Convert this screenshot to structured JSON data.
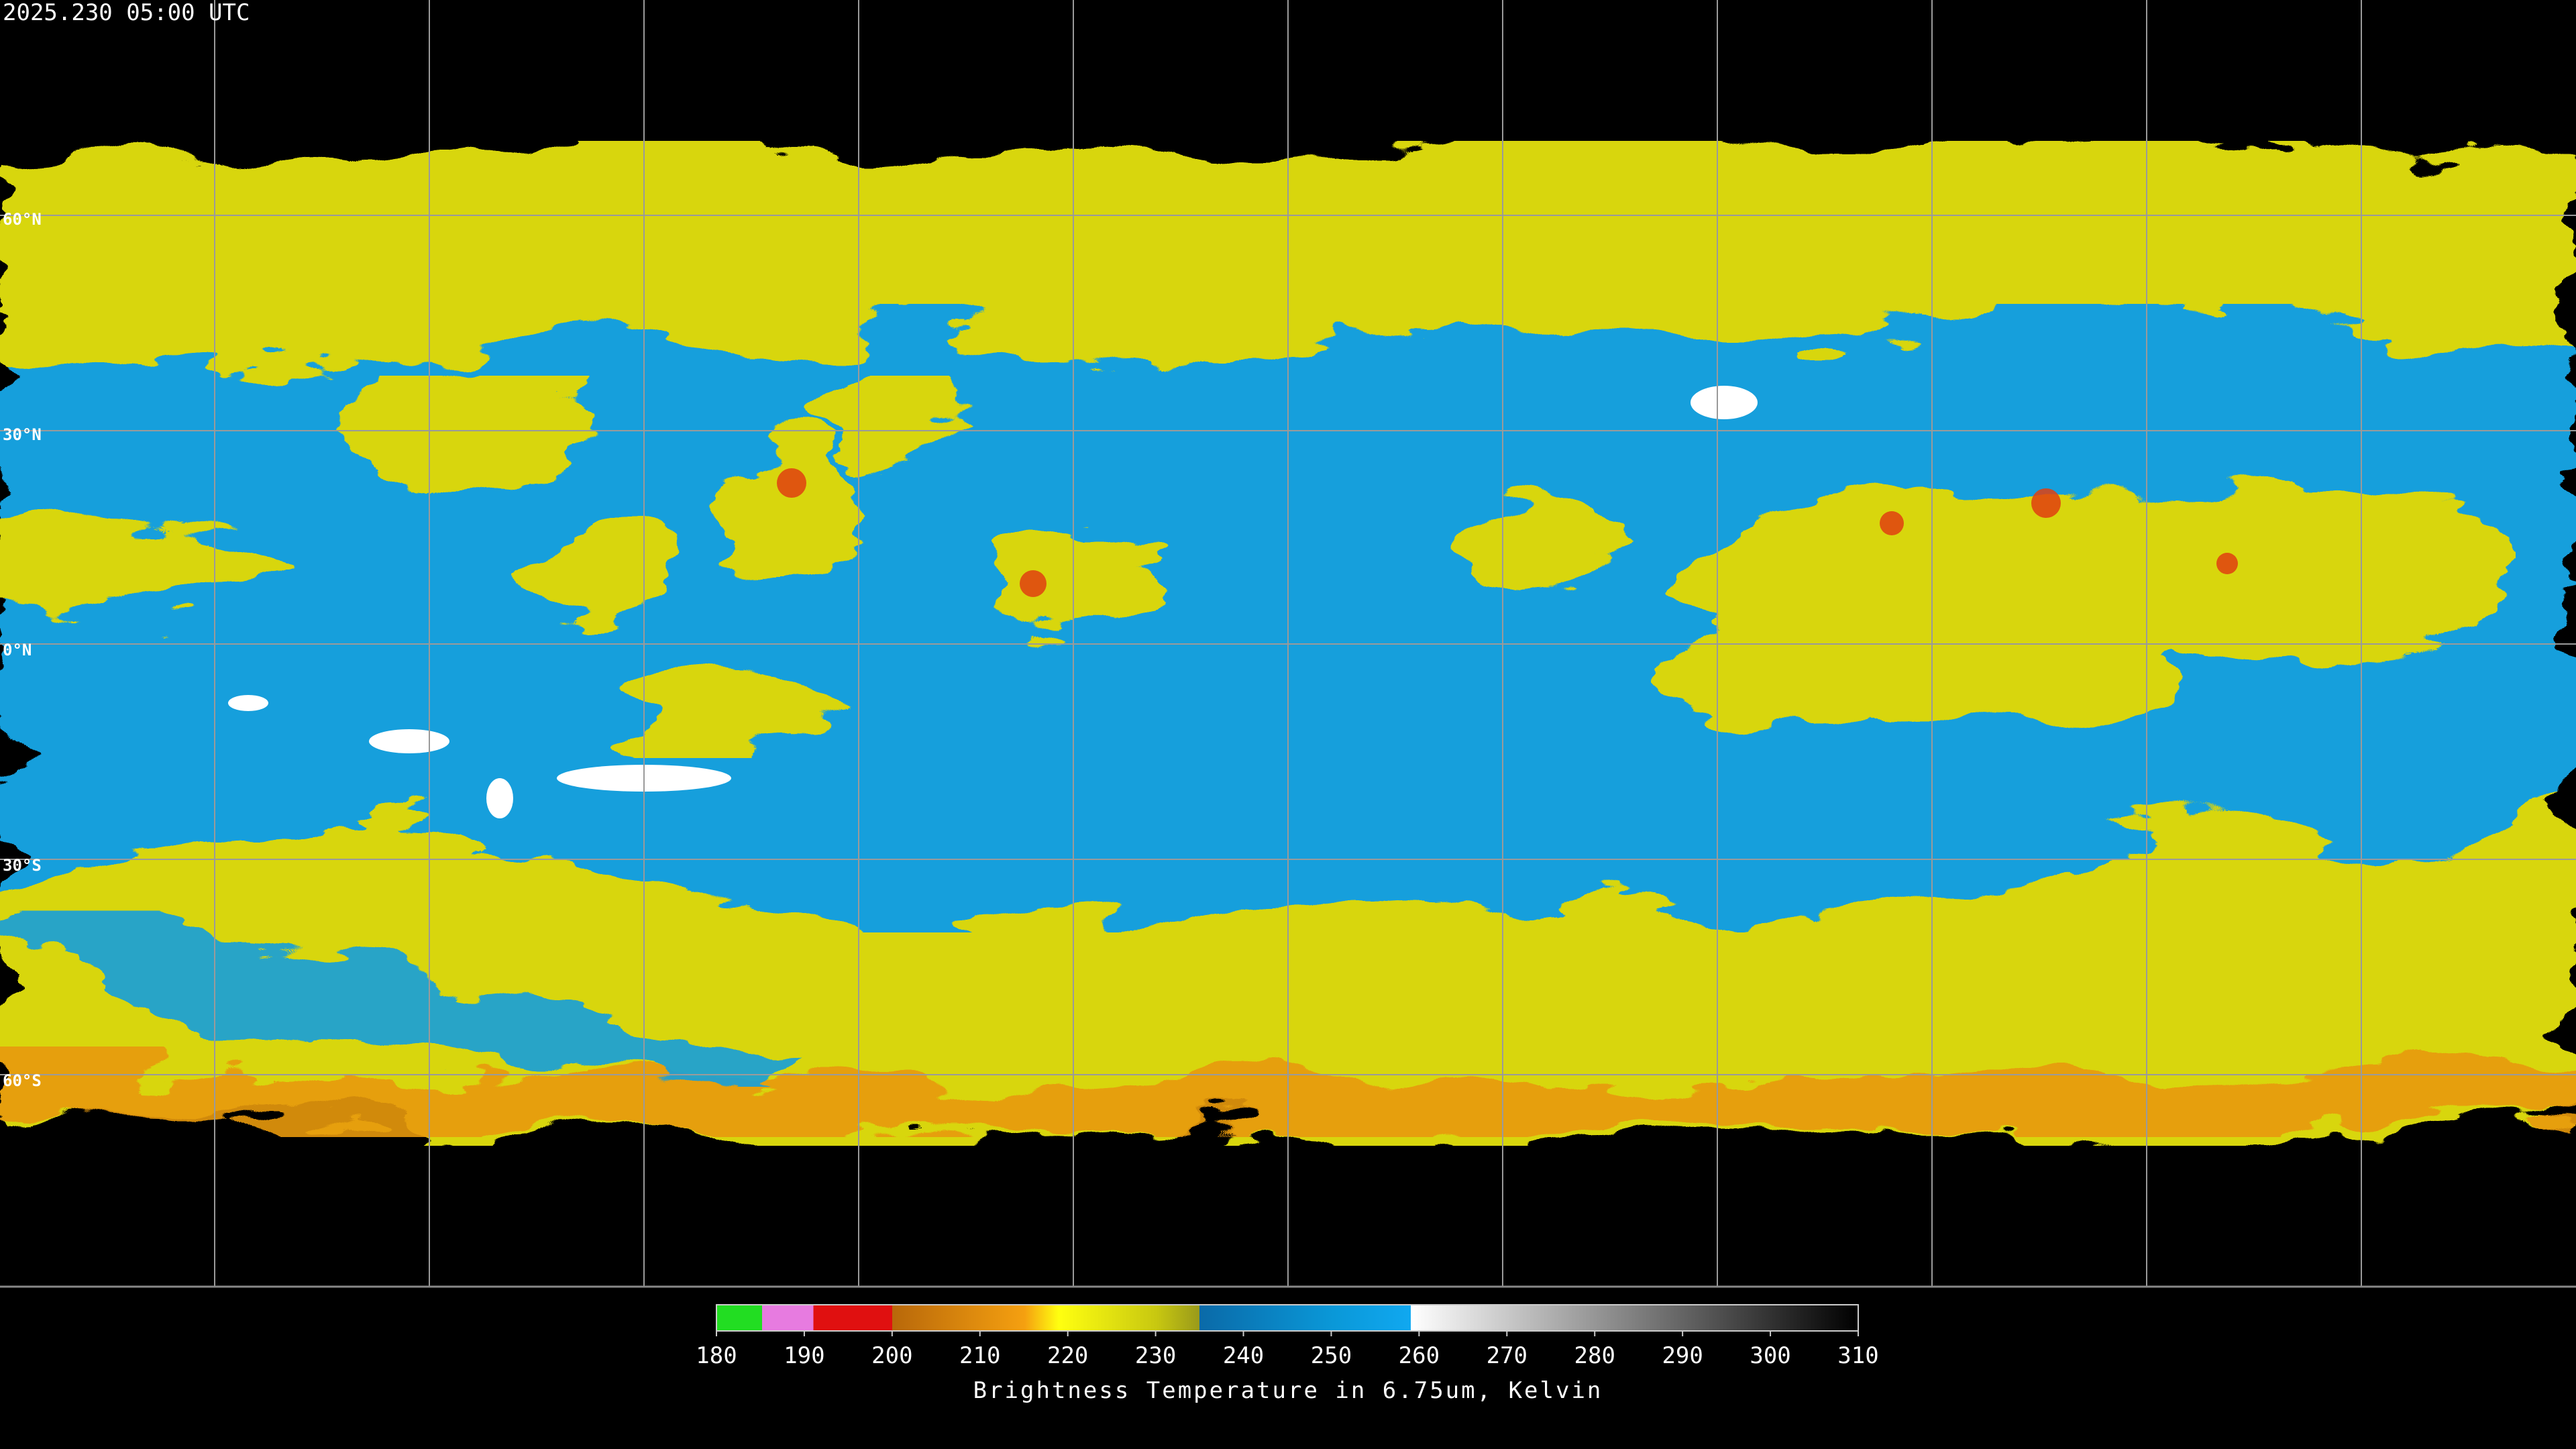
{
  "timestamp": "2025.230 05:00 UTC",
  "map": {
    "latitude_labels": [
      "60°N",
      "30°N",
      "0°N",
      "30°S",
      "60°S"
    ]
  },
  "colorbar": {
    "range": [
      180,
      310
    ],
    "ticks": [
      180,
      190,
      200,
      210,
      220,
      230,
      240,
      250,
      260,
      270,
      280,
      290,
      300,
      310
    ],
    "label": "Brightness Temperature in 6.75um, Kelvin"
  }
}
